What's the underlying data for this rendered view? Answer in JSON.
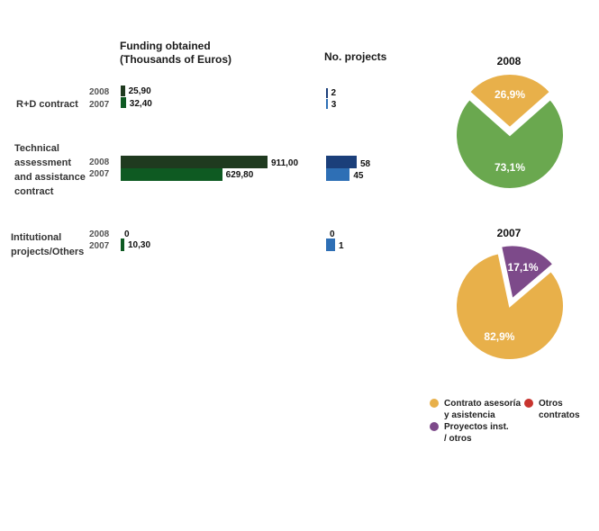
{
  "chart_data": [
    {
      "type": "bar",
      "orientation": "horizontal",
      "title": "Funding obtained\n(Thousands of Euros)",
      "categories": [
        "R+D contract",
        "Technical\nassessment\nand assistance\ncontract",
        "Intitutional\nprojects/Others"
      ],
      "series": [
        {
          "name": "2008",
          "values": [
            25.9,
            911.0,
            0
          ],
          "labels": [
            "25,90",
            "911,00",
            "0"
          ]
        },
        {
          "name": "2007",
          "values": [
            32.4,
            629.8,
            10.3
          ],
          "labels": [
            "32,40",
            "629,80",
            "10,30"
          ]
        }
      ]
    },
    {
      "type": "bar",
      "orientation": "horizontal",
      "title": "No. projects",
      "categories": [
        "R+D contract",
        "Technical assessment and assistance contract",
        "Intitutional projects/Others"
      ],
      "series": [
        {
          "name": "2008",
          "values": [
            2,
            58,
            0
          ],
          "labels": [
            "2",
            "58",
            "0"
          ]
        },
        {
          "name": "2007",
          "values": [
            3,
            45,
            1
          ],
          "labels": [
            "3",
            "45",
            "1"
          ]
        }
      ]
    },
    {
      "type": "pie",
      "title": "2008",
      "slices": [
        {
          "name": "Contrato asesoría y asistencia",
          "value": 73.1,
          "label": "73,1%",
          "color": "#6aa84f"
        },
        {
          "name": "Otros contratos",
          "value": 26.9,
          "label": "26,9%",
          "color": "#e8b04a",
          "exploded": true
        }
      ]
    },
    {
      "type": "pie",
      "title": "2007",
      "slices": [
        {
          "name": "Contrato asesoría y asistencia",
          "value": 82.9,
          "label": "82,9%",
          "color": "#e8b04a"
        },
        {
          "name": "Proyectos inst. / otros",
          "value": 17.1,
          "label": "17,1%",
          "color": "#7d4a8a",
          "exploded": true
        }
      ]
    }
  ],
  "headers": {
    "funding": [
      "Funding obtained",
      "(Thousands of Euros)"
    ],
    "projects": "No. projects"
  },
  "rows": [
    {
      "label_lines": [
        "R+D contract"
      ],
      "year_a": "2008",
      "year_b": "2007"
    },
    {
      "label_lines": [
        "Technical",
        "assessment",
        "and assistance",
        "contract"
      ],
      "year_a": "2008",
      "year_b": "2007"
    },
    {
      "label_lines": [
        "Intitutional",
        "projects/Others"
      ],
      "year_a": "2008",
      "year_b": "2007"
    }
  ],
  "colors": {
    "funding_2008": "#1f3a1f",
    "funding_2007": "#0e5a22",
    "projects_2008": "#1b3f7a",
    "projects_2007": "#2e6fb5",
    "pie_green": "#6aa84f",
    "pie_orange": "#e8b04a",
    "pie_purple": "#7d4a8a",
    "legend_red": "#c8342e"
  },
  "legend": [
    {
      "lines": [
        "Contrato asesoría",
        "y asistencia"
      ],
      "color": "#e8b04a"
    },
    {
      "lines": [
        "Otros",
        "contratos"
      ],
      "color": "#c8342e"
    },
    {
      "lines": [
        "Proyectos inst.",
        "/ otros"
      ],
      "color": "#7d4a8a"
    }
  ]
}
